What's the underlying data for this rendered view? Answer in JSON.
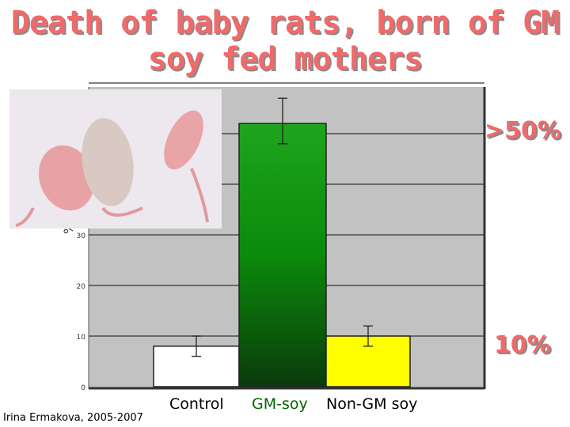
{
  "title_line1": "Death of baby rats, born of GM",
  "title_line2": "soy fed mothers",
  "credit": "Irina Ermakova, 2005-2007",
  "photo_label": "photo of baby rats",
  "callouts": {
    "high": ">50%",
    "low": "10%"
  },
  "chart_data": {
    "type": "bar",
    "categories": [
      "Control",
      "GM-soy",
      "Non-GM soy"
    ],
    "values": [
      8,
      52,
      10
    ],
    "error_low": [
      6,
      48,
      8
    ],
    "error_high": [
      10,
      57,
      12
    ],
    "ylabel": "%",
    "ylim": [
      0,
      60
    ],
    "yticks": [
      0,
      10,
      20,
      30
    ],
    "grid": true,
    "bar_colors": [
      "#ffffff",
      "#0b8a0b",
      "#ffff00"
    ],
    "category_colors": [
      "#000000",
      "#006400",
      "#000000"
    ]
  }
}
